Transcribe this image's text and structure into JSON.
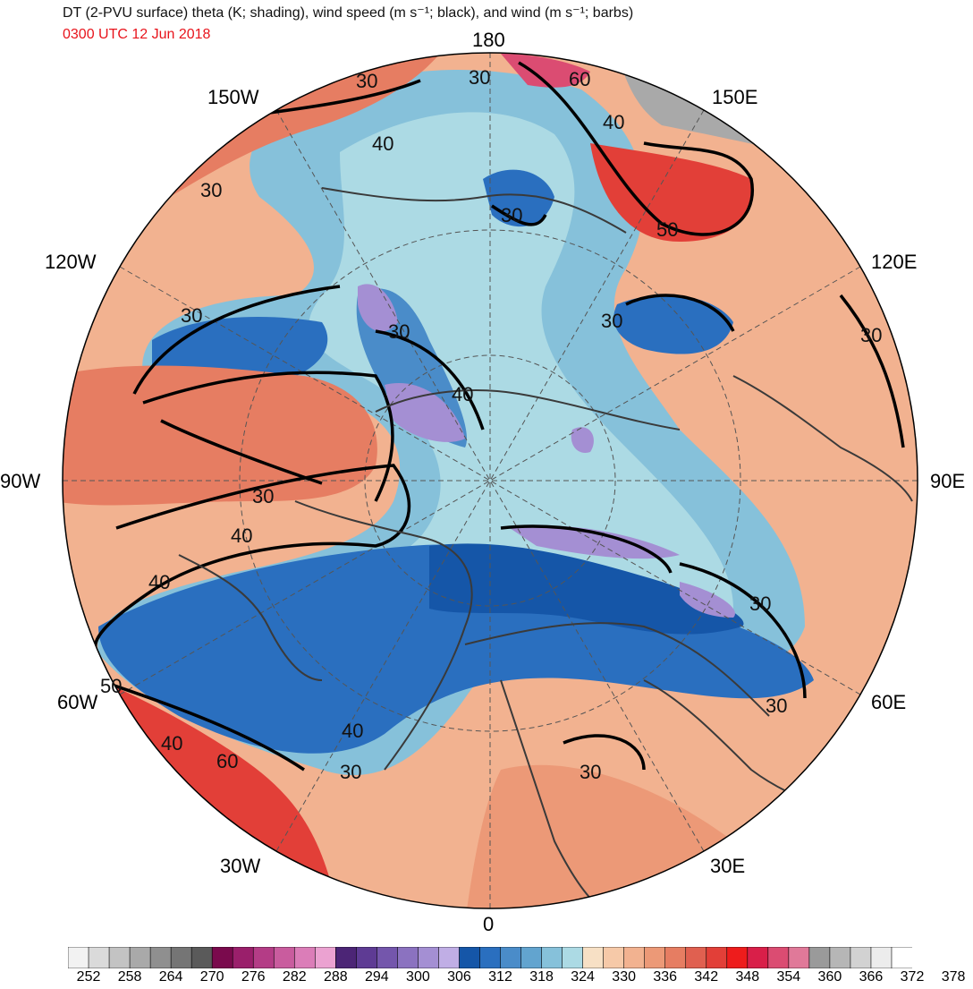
{
  "header": {
    "title": "DT (2-PVU surface) theta (K; shading), wind speed (m s⁻¹; black), and wind (m s⁻¹; barbs)",
    "valid_time": "0300 UTC 12 Jun 2018"
  },
  "longitude_labels": {
    "top": "180",
    "bottom": "0",
    "left": "90W",
    "right": "90E",
    "upper_left_1": "150W",
    "upper_left_2": "120W",
    "lower_left_1": "60W",
    "lower_left_2": "30W",
    "upper_right_1": "150E",
    "upper_right_2": "120E",
    "lower_right_1": "60E",
    "lower_right_2": "30E"
  },
  "contour_labels": [
    {
      "text": "30"
    },
    {
      "text": "60"
    },
    {
      "text": "40"
    },
    {
      "text": "40"
    },
    {
      "text": "30"
    },
    {
      "text": "30"
    },
    {
      "text": "50"
    },
    {
      "text": "30"
    },
    {
      "text": "30"
    },
    {
      "text": "30"
    },
    {
      "text": "40"
    },
    {
      "text": "30"
    },
    {
      "text": "30"
    },
    {
      "text": "40"
    },
    {
      "text": "40"
    },
    {
      "text": "50"
    },
    {
      "text": "40"
    },
    {
      "text": "60"
    },
    {
      "text": "40"
    },
    {
      "text": "30"
    },
    {
      "text": "30"
    },
    {
      "text": "30"
    },
    {
      "text": "30"
    },
    {
      "text": "30"
    }
  ],
  "colorbar": {
    "colors": [
      "#f2f2f2",
      "#dadada",
      "#c3c3c3",
      "#a9a9a9",
      "#8f8f8f",
      "#757575",
      "#5a5a5a",
      "#7a0a4d",
      "#9a1f6b",
      "#b43c86",
      "#c95c9e",
      "#db7db8",
      "#eba2d1",
      "#4c2576",
      "#5e3b94",
      "#7456ac",
      "#8b72c0",
      "#a48fd3",
      "#c0aee5",
      "#1556a8",
      "#2a6fbf",
      "#4a8cc9",
      "#62a4cf",
      "#86c1da",
      "#acdae4",
      "#f7e0c5",
      "#f6c9a8",
      "#f2b290",
      "#ec9977",
      "#e67d62",
      "#e06050",
      "#e23f38",
      "#ee1c1c",
      "#d91f49",
      "#db4c72",
      "#e07999",
      "#9a9a9a",
      "#b6b6b6",
      "#d2d2d2",
      "#ececec",
      "#ffffff"
    ],
    "tick_labels": [
      "252",
      "258",
      "264",
      "270",
      "276",
      "282",
      "288",
      "294",
      "300",
      "306",
      "312",
      "318",
      "324",
      "330",
      "336",
      "342",
      "348",
      "354",
      "360",
      "366",
      "372",
      "378"
    ]
  }
}
